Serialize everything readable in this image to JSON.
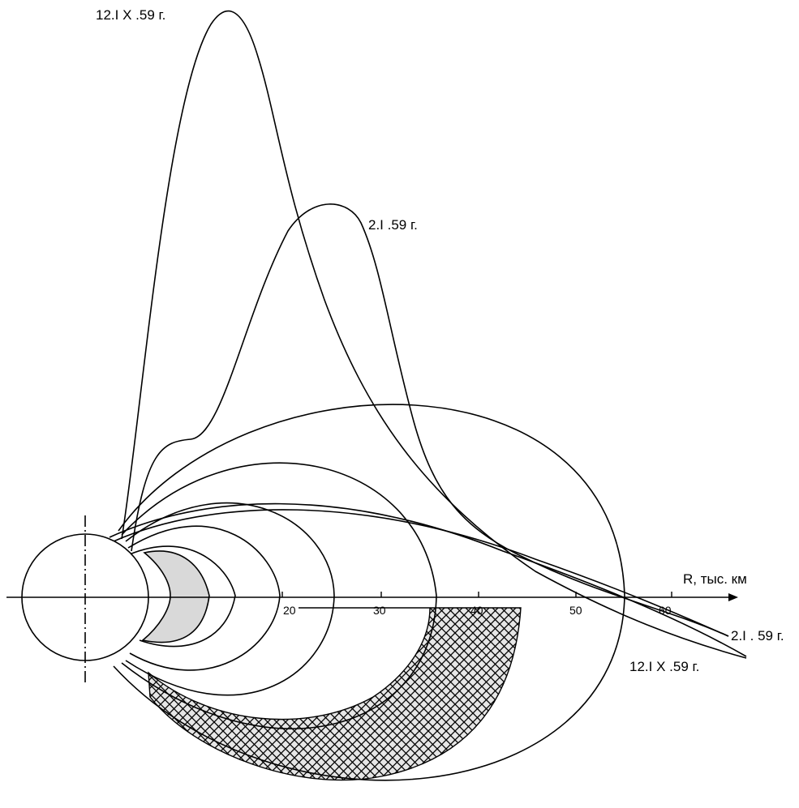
{
  "diagram": {
    "axis_label": "R, тыс. км",
    "ticks": [
      "20",
      "30",
      "40",
      "50",
      "60"
    ],
    "labels": {
      "top_12ix": "12.I X .59 г.",
      "top_2i": "2.I .59 г.",
      "right_2i": "2.I . 59 г.",
      "right_12ix": "12.I X .59 г."
    },
    "colors": {
      "line": "#000000",
      "inner_zone_fill": "#d9d9d9",
      "hatch_zone_fill": "#e0e0e0",
      "hatch_lines": "#000000"
    }
  }
}
